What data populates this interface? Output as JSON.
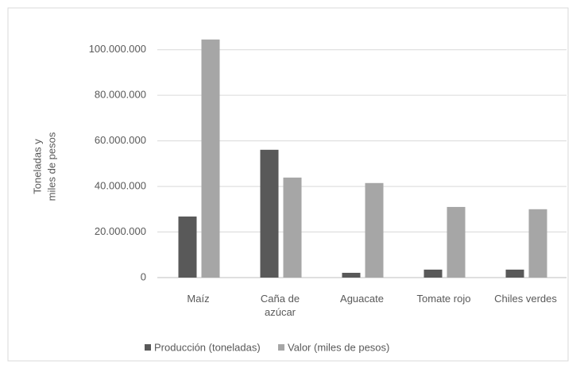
{
  "chart_data": {
    "type": "bar",
    "ylabel": [
      "Toneladas y",
      "miles de pesos"
    ],
    "categories": [
      "Maíz",
      "Caña de azúcar",
      "Aguacate",
      "Tomate rojo",
      "Chiles verdes"
    ],
    "series": [
      {
        "name": "Producción (toneladas)",
        "color": "#595959",
        "values": [
          26800000,
          56100000,
          2100000,
          3500000,
          3500000
        ]
      },
      {
        "name": "Valor (miles de pesos)",
        "color": "#a6a6a6",
        "values": [
          104500000,
          43900000,
          41500000,
          31000000,
          30000000
        ]
      }
    ],
    "ylim": [
      0,
      110000000
    ],
    "yticks": [
      0,
      {
        "value": 20000000,
        "label": "20.000.000"
      },
      {
        "value": 40000000,
        "label": "40.000.000"
      },
      {
        "value": 60000000,
        "label": "60.000.000"
      },
      {
        "value": 80000000,
        "label": "80.000.000"
      },
      {
        "value": 100000000,
        "label": "100.000.000"
      }
    ],
    "grid": true,
    "legend": "bottom"
  }
}
